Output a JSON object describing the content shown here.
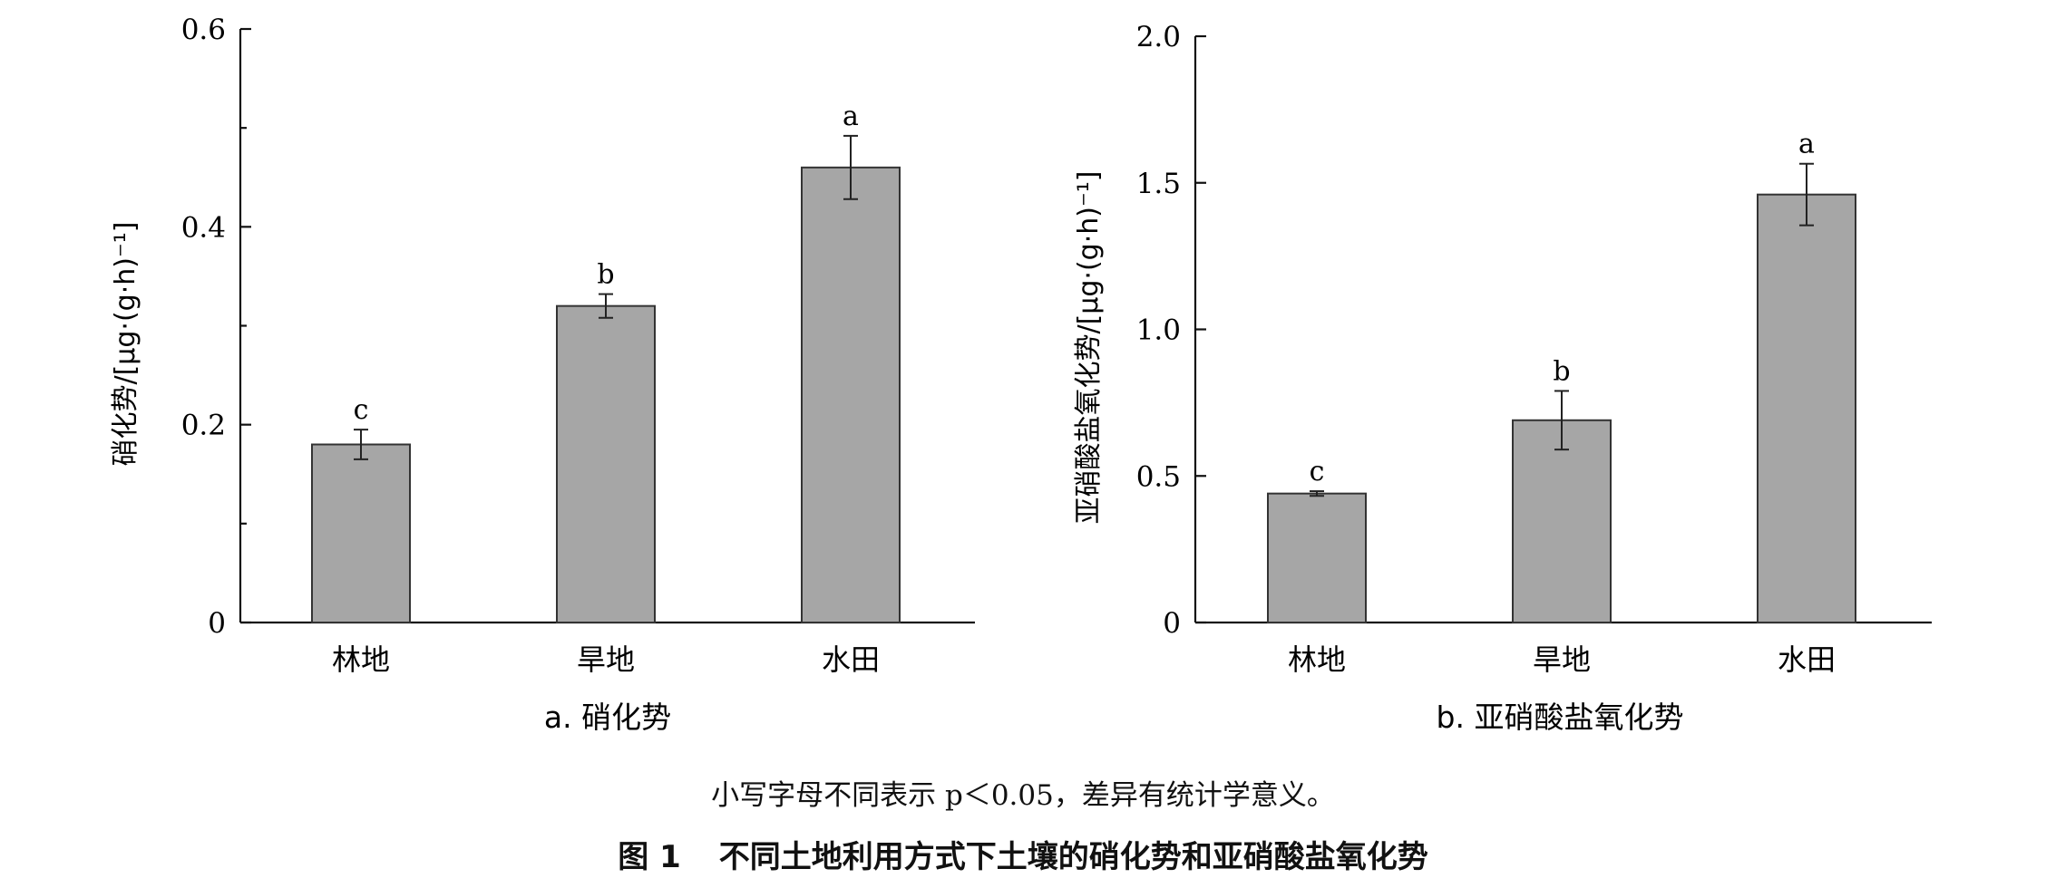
{
  "chart_data": [
    {
      "type": "bar",
      "title": "",
      "subtitle": "a. 硝化势",
      "xlabel": "",
      "ylabel": "硝化势/[μg·(g·h)⁻¹]",
      "categories": [
        "林地",
        "旱地",
        "水田"
      ],
      "values": [
        0.18,
        0.32,
        0.46
      ],
      "errors": [
        0.015,
        0.012,
        0.032
      ],
      "significance": [
        "c",
        "b",
        "a"
      ],
      "ylim": [
        0,
        0.6
      ],
      "yticks": [
        0,
        0.2,
        0.4,
        0.6
      ],
      "ytick_labels": [
        "0",
        "0.2",
        "0.4",
        "0.6"
      ],
      "minor_yticks": [
        0.1,
        0.3,
        0.5
      ],
      "bar_color": "#a6a6a6",
      "grid": false
    },
    {
      "type": "bar",
      "title": "",
      "subtitle": "b. 亚硝酸盐氧化势",
      "xlabel": "",
      "ylabel": "亚硝酸盐氧化势/[μg·(g·h)⁻¹]",
      "categories": [
        "林地",
        "旱地",
        "水田"
      ],
      "values": [
        0.44,
        0.69,
        1.46
      ],
      "errors": [
        0.008,
        0.1,
        0.105
      ],
      "significance": [
        "c",
        "b",
        "a"
      ],
      "ylim": [
        0,
        2.0
      ],
      "yticks": [
        0,
        0.5,
        1.0,
        1.5,
        2.0
      ],
      "ytick_labels": [
        "0",
        "0.5",
        "1.0",
        "1.5",
        "2.0"
      ],
      "minor_yticks": [],
      "bar_color": "#a6a6a6",
      "grid": false
    }
  ],
  "caption": {
    "note": "小写字母不同表示 p＜0.05，差异有统计学意义。",
    "figure_label": "图 1",
    "figure_title": "不同土地利用方式下土壤的硝化势和亚硝酸盐氧化势"
  }
}
